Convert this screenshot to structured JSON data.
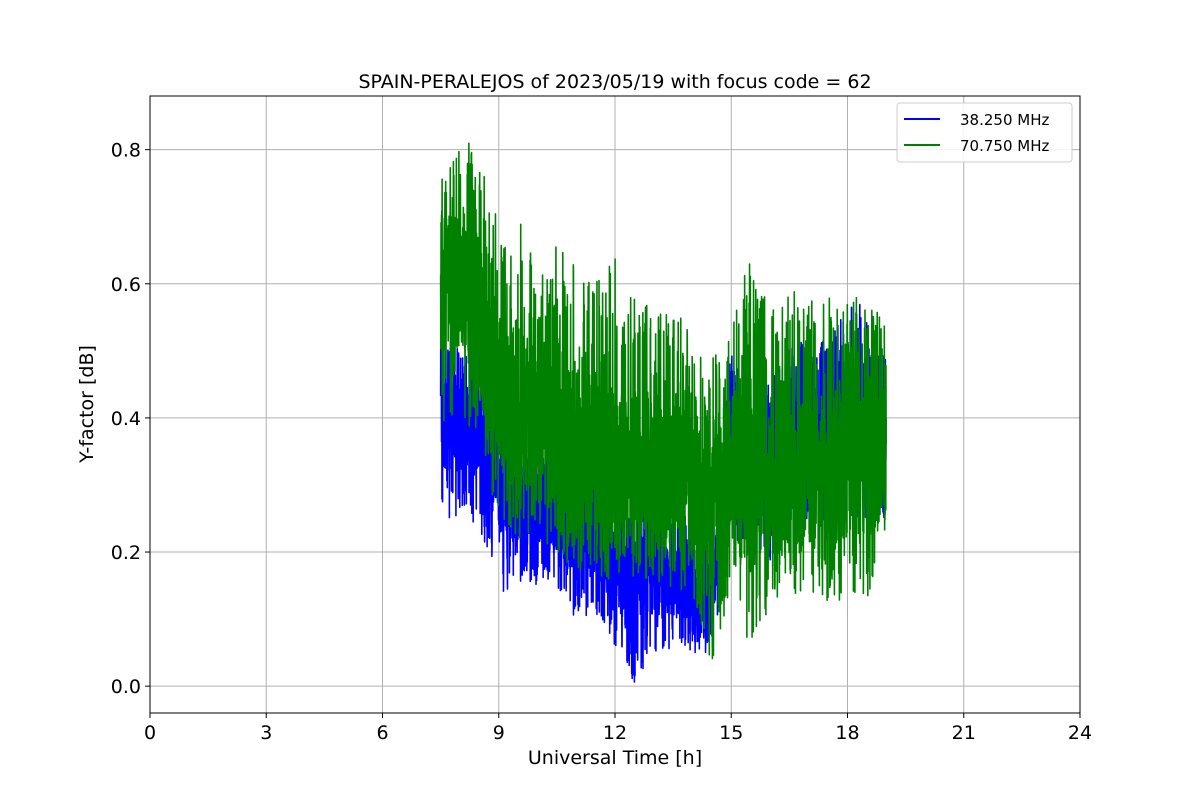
{
  "chart_data": {
    "type": "line",
    "title": "SPAIN-PERALEJOS of 2023/05/19 with focus code = 62",
    "xlabel": "Universal Time [h]",
    "ylabel": "Y-factor [dB]",
    "xlim": [
      0,
      24
    ],
    "ylim": [
      -0.04,
      0.88
    ],
    "xticks": [
      0,
      3,
      6,
      9,
      12,
      15,
      18,
      21,
      24
    ],
    "xtick_labels": [
      "0",
      "3",
      "6",
      "9",
      "12",
      "15",
      "18",
      "21",
      "24"
    ],
    "yticks": [
      0.0,
      0.2,
      0.4,
      0.6,
      0.8
    ],
    "ytick_labels": [
      "0.0",
      "0.2",
      "0.4",
      "0.6",
      "0.8"
    ],
    "grid": true,
    "legend_position": "top-right",
    "series": [
      {
        "name": "38.250 MHz",
        "color": "#0000ff",
        "x": [
          7.5,
          8.0,
          8.5,
          9.0,
          9.5,
          10.0,
          10.5,
          11.0,
          11.5,
          12.0,
          12.5,
          13.0,
          13.5,
          14.0,
          14.5,
          15.0,
          15.5,
          16.0,
          16.5,
          17.0,
          17.5,
          18.0,
          18.5,
          19.0
        ],
        "mean": [
          0.39,
          0.39,
          0.37,
          0.3,
          0.27,
          0.26,
          0.25,
          0.24,
          0.22,
          0.18,
          0.16,
          0.16,
          0.16,
          0.14,
          0.13,
          0.37,
          0.31,
          0.32,
          0.35,
          0.36,
          0.39,
          0.42,
          0.41,
          0.36
        ],
        "min": [
          0.26,
          0.24,
          0.24,
          0.13,
          0.15,
          0.15,
          0.15,
          0.09,
          0.11,
          0.06,
          0.0,
          0.04,
          0.06,
          0.05,
          0.05,
          0.23,
          0.17,
          0.18,
          0.22,
          0.21,
          0.24,
          0.26,
          0.24,
          0.25
        ],
        "max": [
          0.53,
          0.5,
          0.48,
          0.4,
          0.4,
          0.37,
          0.36,
          0.35,
          0.35,
          0.3,
          0.3,
          0.27,
          0.26,
          0.25,
          0.23,
          0.5,
          0.45,
          0.46,
          0.5,
          0.53,
          0.51,
          0.57,
          0.57,
          0.49
        ]
      },
      {
        "name": "70.750 MHz",
        "color": "#008000",
        "x": [
          7.5,
          8.0,
          8.5,
          9.0,
          9.5,
          10.0,
          10.5,
          11.0,
          11.5,
          12.0,
          12.5,
          13.0,
          13.5,
          14.0,
          14.5,
          15.0,
          15.5,
          16.0,
          16.5,
          17.0,
          17.5,
          18.0,
          18.5,
          19.0
        ],
        "mean": [
          0.62,
          0.6,
          0.55,
          0.42,
          0.42,
          0.4,
          0.37,
          0.35,
          0.34,
          0.33,
          0.33,
          0.32,
          0.32,
          0.3,
          0.28,
          0.32,
          0.32,
          0.3,
          0.3,
          0.32,
          0.32,
          0.34,
          0.33,
          0.33
        ],
        "min": [
          0.38,
          0.42,
          0.34,
          0.25,
          0.22,
          0.22,
          0.2,
          0.17,
          0.16,
          0.16,
          0.16,
          0.16,
          0.14,
          0.13,
          0.0,
          0.12,
          0.05,
          0.12,
          0.14,
          0.13,
          0.12,
          0.11,
          0.13,
          0.2
        ],
        "max": [
          0.76,
          0.81,
          0.84,
          0.68,
          0.71,
          0.63,
          0.66,
          0.63,
          0.6,
          0.66,
          0.59,
          0.56,
          0.58,
          0.52,
          0.5,
          0.57,
          0.65,
          0.56,
          0.6,
          0.58,
          0.59,
          0.59,
          0.57,
          0.56
        ]
      }
    ]
  }
}
